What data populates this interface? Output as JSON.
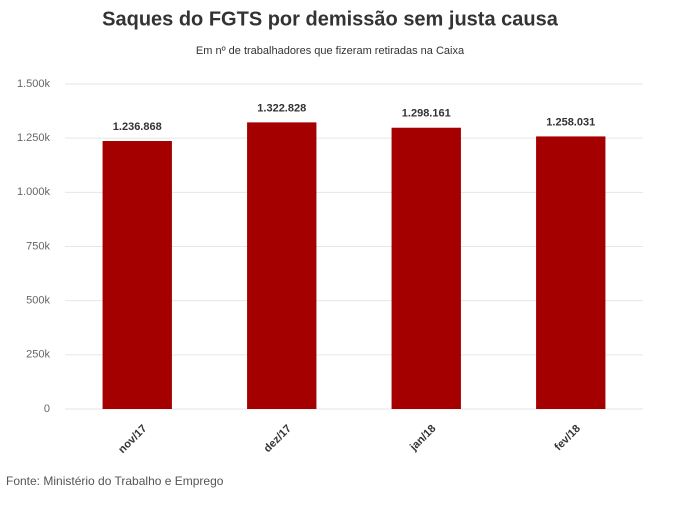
{
  "chart_data": {
    "type": "bar",
    "title": "Saques do FGTS por demissão sem justa causa",
    "subtitle": "Em nº de trabalhadores que fizeram retiradas na Caixa",
    "source": "Fonte: Ministério do Trabalho e Emprego",
    "categories": [
      "nov/17",
      "dez/17",
      "jan/18",
      "fev/18"
    ],
    "values": [
      1236868,
      1322828,
      1298161,
      1258031
    ],
    "value_labels": [
      "1.236.868",
      "1.322.828",
      "1.298.161",
      "1.258.031"
    ],
    "color": "#a50000",
    "ylim": [
      0,
      1500000
    ],
    "yticks": [
      0,
      {
        "value": 250000,
        "label": "250k"
      },
      {
        "value": 500000,
        "label": "500k"
      },
      {
        "value": 750000,
        "label": "750k"
      },
      {
        "value": 1000000,
        "label": "1.000k"
      },
      {
        "value": 1250000,
        "label": "1.250k"
      },
      {
        "value": 1500000,
        "label": "1.500k"
      }
    ],
    "grid": true
  }
}
